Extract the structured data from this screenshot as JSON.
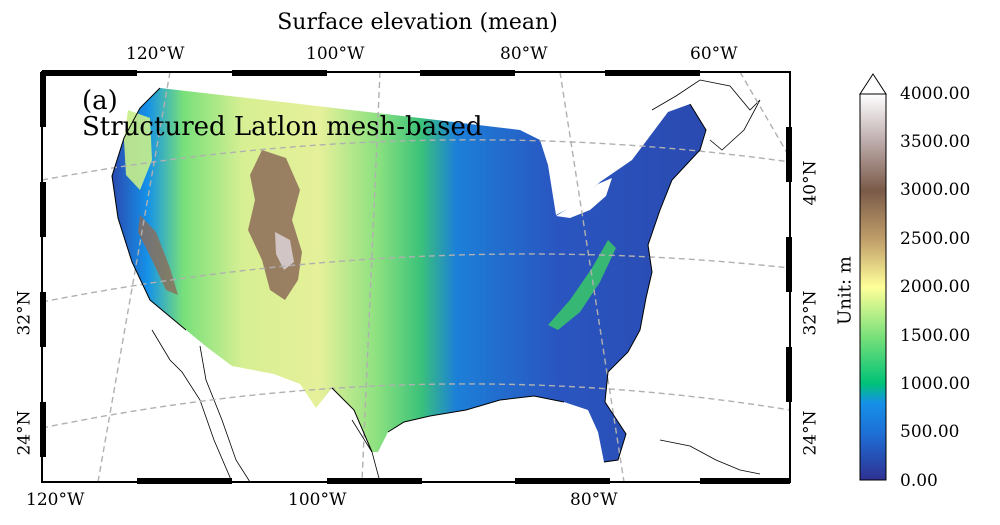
{
  "title": "Surface elevation (mean)",
  "panel": {
    "letter": "(a)",
    "caption": "Structured Latlon mesh-based"
  },
  "top_ticks": [
    "120°W",
    "100°W",
    "80°W",
    "60°W"
  ],
  "bottom_ticks": [
    "120°W",
    "100°W",
    "80°W"
  ],
  "left_ticks": [
    "32°N",
    "24°N"
  ],
  "right_ticks": [
    "40°N",
    "32°N",
    "24°N"
  ],
  "colorbar": {
    "label": "Unit: m",
    "ticks": [
      "4000.00",
      "3500.00",
      "3000.00",
      "2500.00",
      "2000.00",
      "1500.00",
      "1000.00",
      "500.00",
      "0.00"
    ],
    "range": [
      0,
      4000
    ],
    "extend": "max",
    "colormap": [
      "#2e3192",
      "#1e6fd6",
      "#1591e8",
      "#00c277",
      "#78e07a",
      "#ffff99",
      "#c2a06b",
      "#7a5a48",
      "#ffffff"
    ]
  },
  "colors": {
    "ocean": "#ffffff",
    "low": "#2a4ab0",
    "plains": "#1c7fd8",
    "high_plains": "#39c26b",
    "foothills": "#c8ee8a",
    "mountains": "#8d6b58",
    "peaks": "#e9e3f0",
    "grid": "#b0b0b0"
  }
}
